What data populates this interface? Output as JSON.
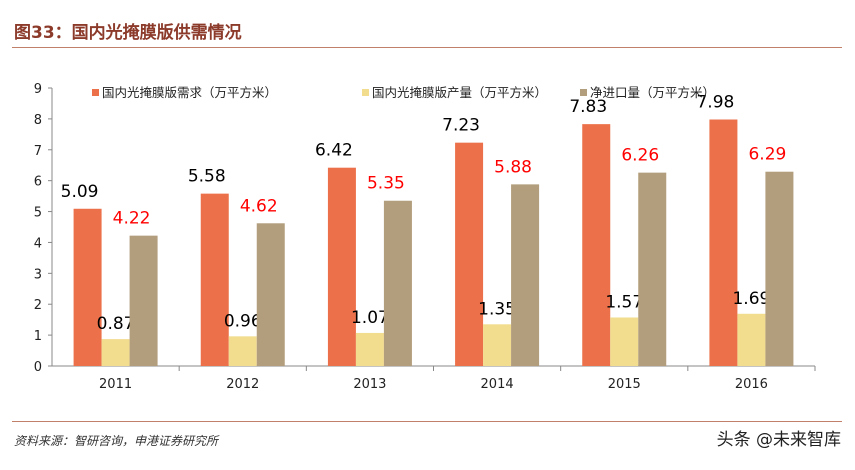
{
  "title": "图33：国内光掩膜版供需情况",
  "source": "资料来源：智研咨询，申港证券研究所",
  "watermark": "头条 @未来智库",
  "chart_data": {
    "type": "bar",
    "categories": [
      "2011",
      "2012",
      "2013",
      "2014",
      "2015",
      "2016"
    ],
    "series": [
      {
        "name": "国内光掩膜版需求（万平方米）",
        "color": "#ec7049",
        "label_color": "#000000",
        "values": [
          5.09,
          5.58,
          6.42,
          7.23,
          7.83,
          7.98
        ]
      },
      {
        "name": "国内光掩膜版产量（万平方米）",
        "color": "#f2dc8e",
        "label_color": "#000000",
        "values": [
          0.87,
          0.96,
          1.07,
          1.35,
          1.57,
          1.69
        ]
      },
      {
        "name": "净进口量（万平方米）",
        "color": "#b29d7c",
        "label_color": "#ff0000",
        "values": [
          4.22,
          4.62,
          5.35,
          5.88,
          6.26,
          6.29
        ]
      }
    ],
    "yticks": [
      "0",
      "1",
      "2",
      "3",
      "4",
      "5",
      "6",
      "7",
      "8",
      "9"
    ],
    "ylim": [
      0,
      9
    ],
    "legend": "top",
    "grid": false
  }
}
